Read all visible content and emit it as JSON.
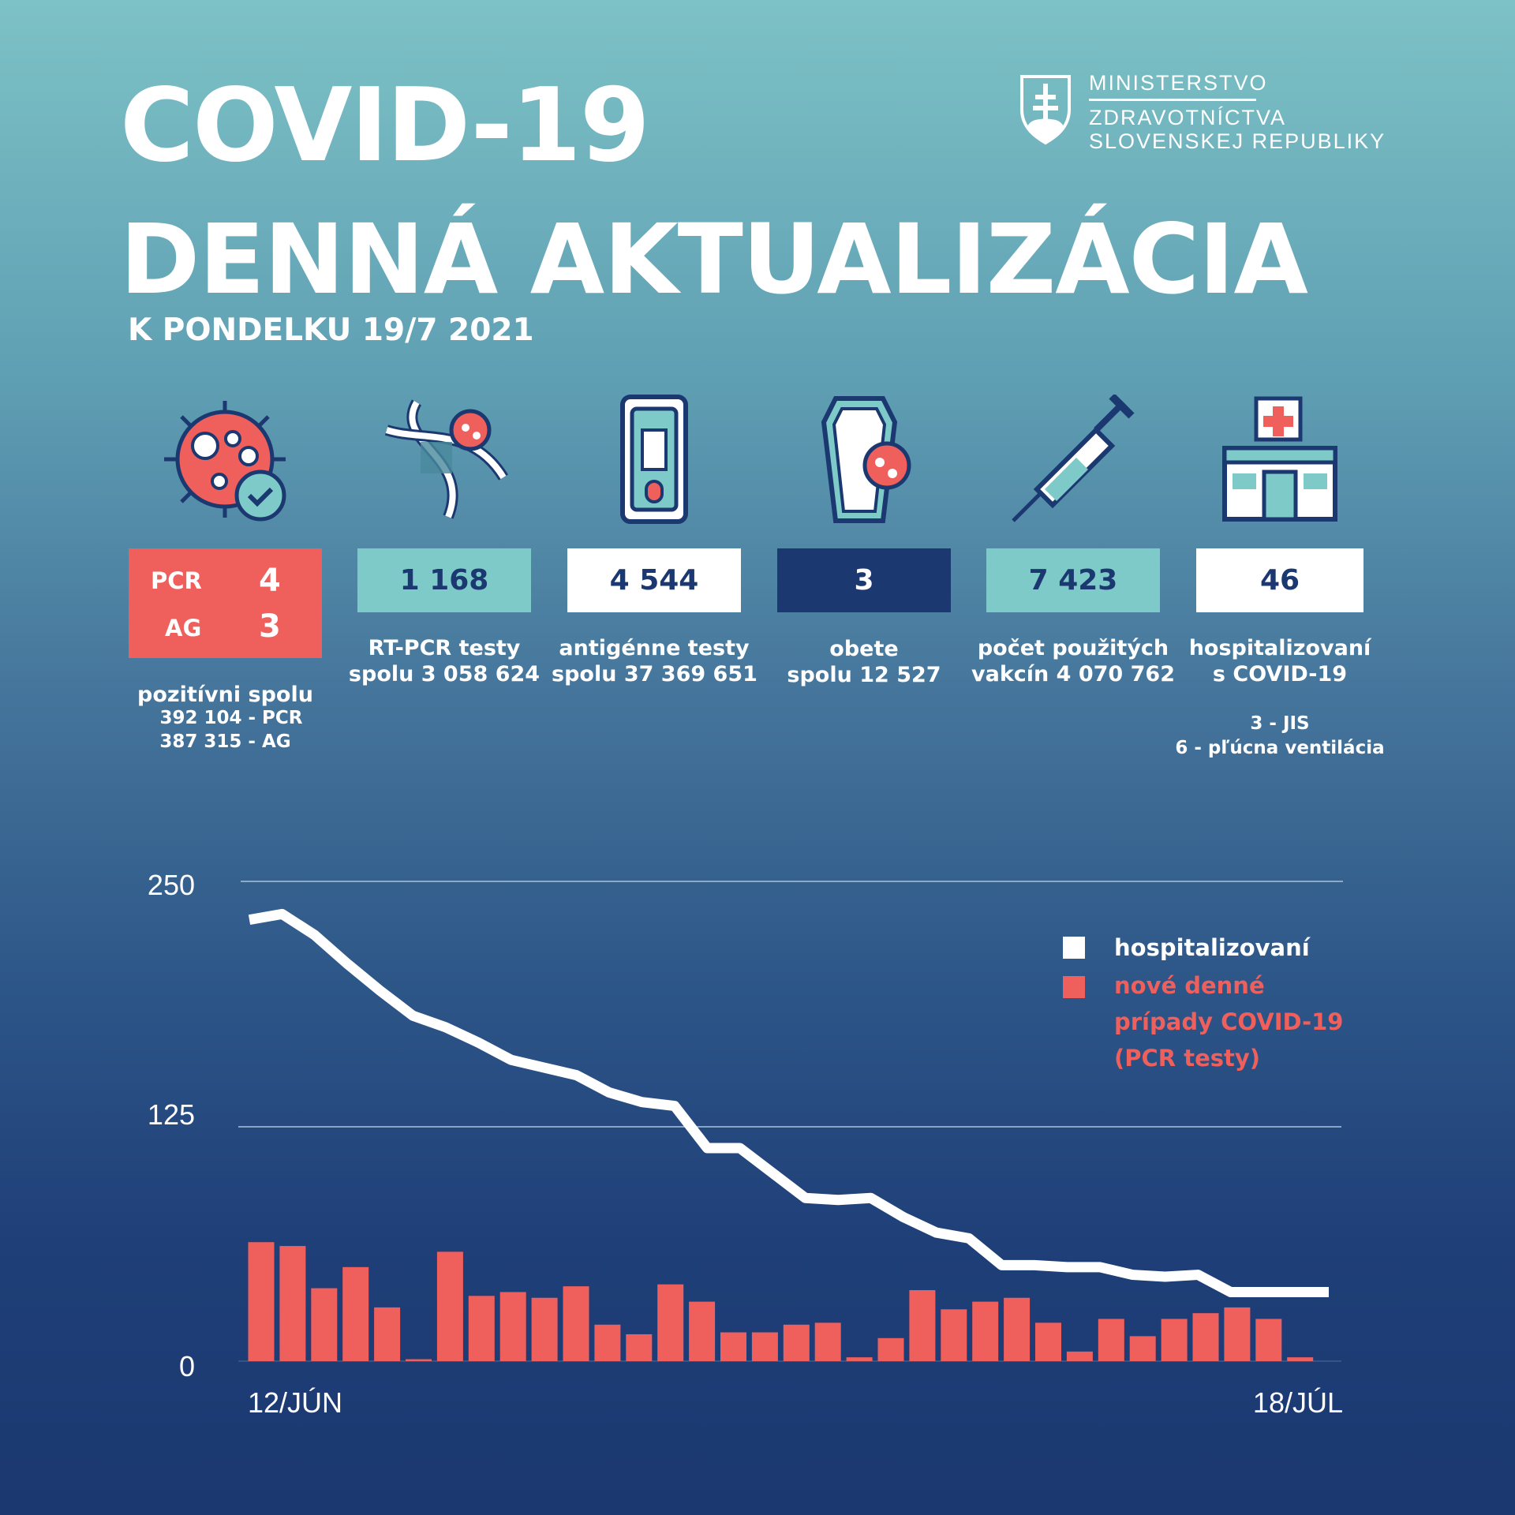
{
  "header": {
    "title_line1": "COVID-19",
    "title_line2": "DENNÁ AKTUALIZÁCIA",
    "subtitle": "K PONDELKU 19/7 2021"
  },
  "logo": {
    "line1": "MINISTERSTVO",
    "line2": "ZDRAVOTNÍCTVA",
    "line3": "SLOVENSKEJ REPUBLIKY"
  },
  "stats": {
    "positive": {
      "pcr_label": "PCR",
      "pcr_value": "4",
      "ag_label": "AG",
      "ag_value": "3",
      "caption": "pozitívni spolu",
      "total_pcr": "392 104 - PCR",
      "total_ag": "387 315 - AG",
      "icon": "virus-check-icon"
    },
    "rtpcr": {
      "value": "1 168",
      "line1": "RT-PCR testy",
      "line2": "spolu 3 058 624",
      "icon": "dna-virus-icon"
    },
    "antigen": {
      "value": "4 544",
      "line1": "antigénne testy",
      "line2": "spolu 37 369 651",
      "icon": "test-cassette-icon"
    },
    "deaths": {
      "value": "3",
      "line1": "obete",
      "line2": "spolu 12 527",
      "icon": "coffin-icon"
    },
    "vaccines": {
      "value": "7 423",
      "line1": "počet použitých",
      "line2": "vakcín 4 070 762",
      "icon": "syringe-icon"
    },
    "hospital": {
      "value": "46",
      "line1": "hospitalizovaní",
      "line2": "s COVID-19",
      "jis": "3 - JIS",
      "ventilation": "6 - pľúcna ventilácia",
      "icon": "hospital-icon"
    }
  },
  "colors": {
    "red": "#ef5f5c",
    "teal": "#7ecac8",
    "navy": "#1b3870",
    "white": "#ffffff"
  },
  "chart_data": {
    "type": "bar+line",
    "y_ticks": [
      "0",
      "125",
      "250"
    ],
    "ylim": [
      0,
      250
    ],
    "x_start_label": "12/JÚN",
    "x_end_label": "18/JÚL",
    "grid": true,
    "legend_position": "top-right",
    "series": [
      {
        "name": "hospitalizovaní",
        "type": "line",
        "color": "#ffffff",
        "values": [
          230,
          233,
          222,
          207,
          193,
          180,
          174,
          166,
          157,
          153,
          149,
          140,
          135,
          133,
          111,
          111,
          98,
          85,
          84,
          85,
          75,
          67,
          64,
          50,
          50,
          49,
          49,
          45,
          44,
          45,
          36,
          36,
          36,
          36
        ]
      },
      {
        "name": "nové denné prípady COVID-19 (PCR testy)",
        "name_lines": [
          "nové denné",
          "prípady COVID-19",
          "(PCR testy)"
        ],
        "type": "bar",
        "color": "#ef5f5c",
        "values": [
          62,
          60,
          38,
          49,
          28,
          1,
          57,
          34,
          36,
          33,
          39,
          19,
          14,
          40,
          31,
          15,
          15,
          19,
          20,
          2,
          12,
          37,
          27,
          31,
          33,
          20,
          5,
          22,
          13,
          22,
          25,
          28,
          22,
          2
        ]
      }
    ]
  }
}
